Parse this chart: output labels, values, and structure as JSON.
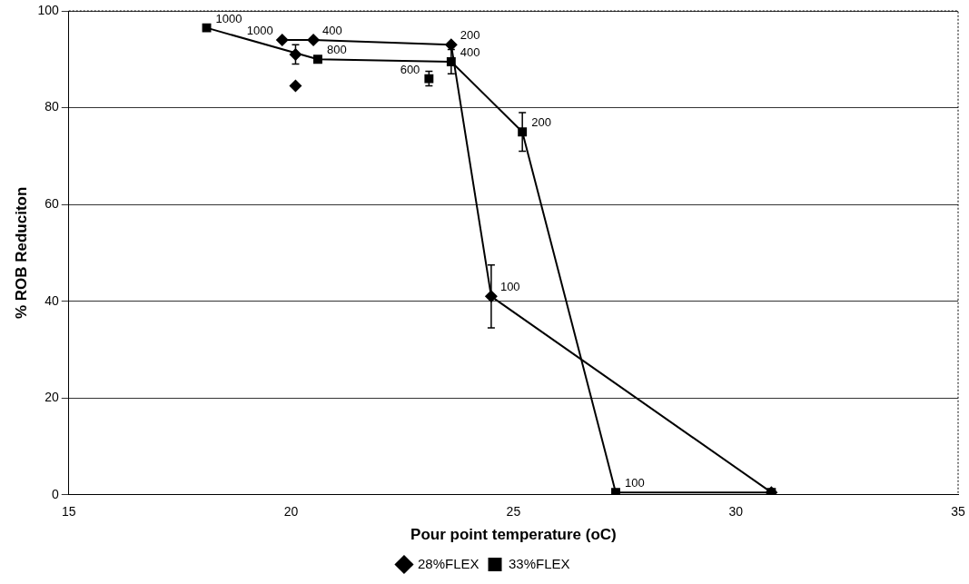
{
  "chart_data": {
    "type": "line",
    "xlabel": "Pour point temperature (oC)",
    "ylabel": "% ROB Reduciton",
    "xlim": [
      15,
      35
    ],
    "xticks": [
      15,
      20,
      25,
      30,
      35
    ],
    "ylim": [
      0,
      100
    ],
    "yticks": [
      0,
      20,
      40,
      60,
      80,
      100
    ],
    "grid": "y",
    "annotations": [
      {
        "text": "1000",
        "x": 19.8,
        "y": 94
      },
      {
        "text": "400",
        "x": 20.5,
        "y": 94
      },
      {
        "text": "200",
        "x": 23.6,
        "y": 93
      },
      {
        "text": "100",
        "x": 24.5,
        "y": 41
      },
      {
        "text": "1000",
        "x": 18.1,
        "y": 96.5
      },
      {
        "text": "800",
        "x": 20.6,
        "y": 90
      },
      {
        "text": "600",
        "x": 23.1,
        "y": 86
      },
      {
        "text": "400",
        "x": 23.6,
        "y": 89.5
      },
      {
        "text": "200",
        "x": 25.2,
        "y": 75
      },
      {
        "text": "100",
        "x": 27.3,
        "y": 0.5
      }
    ],
    "legend": "bottom",
    "line_style": "solid",
    "series": [
      {
        "name": "28%FLEX",
        "color": "#000000",
        "marker": "diamond",
        "x": [
          19.8,
          20.5,
          23.6,
          24.5,
          30.8
        ],
        "values": [
          94,
          94,
          93,
          41,
          0.5
        ],
        "errors": [
          null,
          null,
          null,
          6.5,
          null
        ]
      },
      {
        "name": "33%FLEX",
        "color": "#000000",
        "marker": "square",
        "x": [
          18.1,
          20.6,
          23.6,
          25.2,
          27.3,
          30.8
        ],
        "values": [
          96.5,
          90,
          89.5,
          75,
          0.5,
          0.5
        ],
        "errors": [
          null,
          null,
          2.5,
          4,
          null,
          null
        ]
      },
      {
        "type": "scatter",
        "color": "#000000",
        "marker": "diamond",
        "x": [
          20.1,
          20.1
        ],
        "values": [
          91,
          84.5
        ],
        "errors": [
          2,
          null
        ]
      },
      {
        "type": "scatter",
        "color": "#000000",
        "marker": "square",
        "x": [
          23.1
        ],
        "values": [
          86
        ],
        "errors": [
          1.5
        ]
      }
    ]
  }
}
